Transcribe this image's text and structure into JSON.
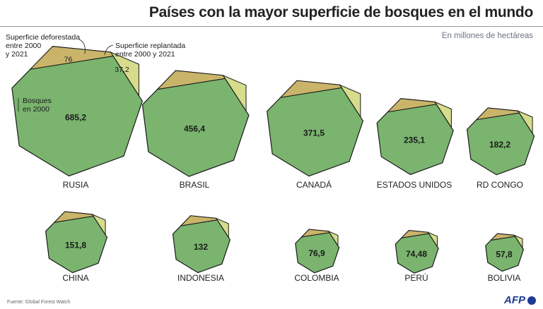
{
  "title": "Países con la mayor superficie de bosques en el mundo",
  "subtitle": "En millones de hectáreas",
  "source": "Fuente: Global Forest Watch",
  "logo": "AFP",
  "annotations": {
    "deforested": [
      "Superficie deforestada",
      "entre 2000",
      "y 2021"
    ],
    "replanted": [
      "Superficie replantada",
      "entre 2000 y 2021"
    ],
    "forest": [
      "Bosques",
      "en 2000"
    ]
  },
  "colors": {
    "forest": "#7ab46e",
    "deforested": "#c9b46a",
    "replanted": "#d6dc8c",
    "outline": "#1a1a1a"
  },
  "chart_data": {
    "type": "heptagon-area",
    "unit": "millones de hectáreas",
    "series_names": [
      "Bosques en 2000",
      "Superficie deforestada entre 2000 y 2021",
      "Superficie replantada entre 2000 y 2021"
    ],
    "countries": [
      {
        "name": "RUSIA",
        "forest_2000": "685,2",
        "value": 685.2,
        "deforested": "76",
        "replanted": "37,2"
      },
      {
        "name": "BRASIL",
        "forest_2000": "456,4",
        "value": 456.4
      },
      {
        "name": "CANADÁ",
        "forest_2000": "371,5",
        "value": 371.5
      },
      {
        "name": "ESTADOS UNIDOS",
        "forest_2000": "235,1",
        "value": 235.1
      },
      {
        "name": "RD CONGO",
        "forest_2000": "182,2",
        "value": 182.2
      },
      {
        "name": "CHINA",
        "forest_2000": "151,8",
        "value": 151.8
      },
      {
        "name": "INDONESIA",
        "forest_2000": "132",
        "value": 132
      },
      {
        "name": "COLOMBIA",
        "forest_2000": "76,9",
        "value": 76.9
      },
      {
        "name": "PERÚ",
        "forest_2000": "74,48",
        "value": 74.48
      },
      {
        "name": "BOLIVIA",
        "forest_2000": "57,8",
        "value": 57.8
      }
    ]
  }
}
